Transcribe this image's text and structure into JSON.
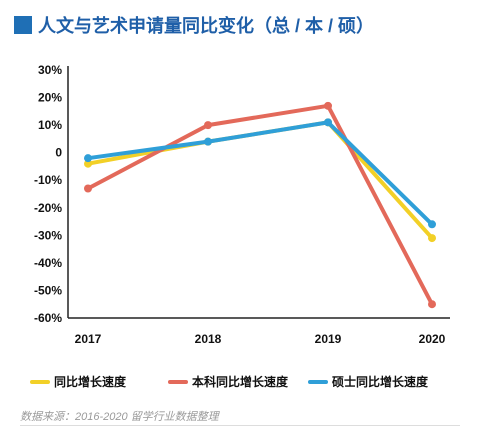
{
  "title": "人文与艺术申请量同比变化（总 / 本 / 硕）",
  "source": "数据来源：2016-2020 留学行业数据整理",
  "chart_data": {
    "type": "line",
    "title": "人文与艺术申请量同比变化（总 / 本 / 硕）",
    "categories": [
      "2017",
      "2018",
      "2019",
      "2020"
    ],
    "ylim": [
      -60,
      30
    ],
    "yticks": [
      30,
      20,
      10,
      0,
      -10,
      -20,
      -30,
      -40,
      -50,
      -60
    ],
    "ytick_labels": [
      "30%",
      "20%",
      "10%",
      "0",
      "-10%",
      "-20%",
      "-30%",
      "-40%",
      "-50%",
      "-60%"
    ],
    "grid": false,
    "legend": "bottom",
    "series": [
      {
        "name": "同比增长速度",
        "color": "#f2d027",
        "values": [
          -4,
          4,
          11,
          -31
        ]
      },
      {
        "name": "本科同比增长速度",
        "color": "#e3695a",
        "values": [
          -13,
          10,
          17,
          -55
        ]
      },
      {
        "name": "硕士同比增长速度",
        "color": "#2f9fd8",
        "values": [
          -2,
          4,
          11,
          -26
        ]
      }
    ]
  }
}
